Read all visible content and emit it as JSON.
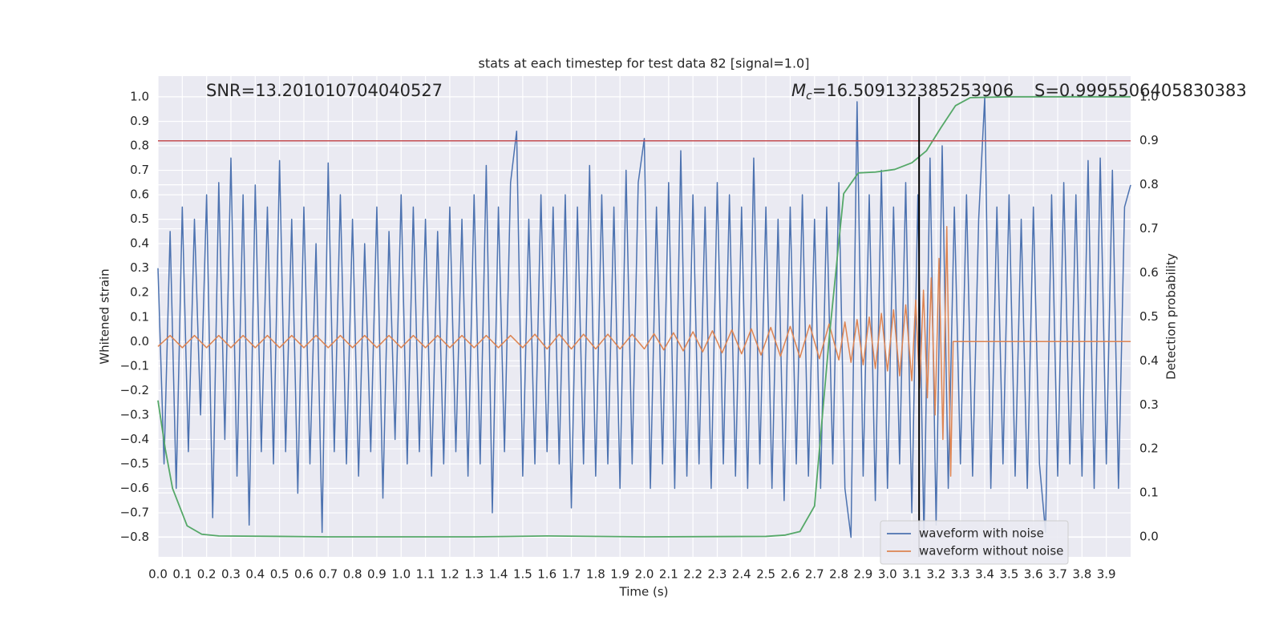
{
  "chart_data": {
    "type": "line",
    "title": "stats at each timestep for test data 82 [signal=1.0]",
    "xlabel": "Time (s)",
    "ylabel": "Whitened strain",
    "y2label": "Detection probability",
    "annotations": {
      "snr": "SNR=13.201010704040527",
      "mc_symbol": "M",
      "mc_subscript": "c",
      "mc_value": "=16.509132385253906",
      "s": "S=0.9995506405830383"
    },
    "xlim": [
      0,
      4
    ],
    "ylim": [
      -0.88,
      1.085
    ],
    "y2lim": [
      -0.0455,
      1.047
    ],
    "xticks": [
      {
        "value": 0.0,
        "label": "0.0"
      },
      0.1,
      0.2,
      0.3,
      0.4,
      0.5,
      0.6,
      0.7,
      0.8,
      0.9,
      {
        "value": 1.0,
        "label": "1.0"
      },
      1.1,
      1.2,
      1.3,
      1.4,
      1.5,
      1.6,
      1.7,
      1.8,
      1.9,
      {
        "value": 2.0,
        "label": "2.0"
      },
      2.1,
      2.2,
      2.3,
      2.4,
      2.5,
      2.6,
      2.7,
      2.8,
      2.9,
      {
        "value": 3.0,
        "label": "3.0"
      },
      3.1,
      3.2,
      3.3,
      3.4,
      3.5,
      3.6,
      3.7,
      3.8,
      3.9
    ],
    "yticks": [
      {
        "value": -0.8,
        "label": "−0.8"
      },
      {
        "value": -0.7,
        "label": "−0.7"
      },
      {
        "value": -0.6,
        "label": "−0.6"
      },
      {
        "value": -0.5,
        "label": "−0.5"
      },
      {
        "value": -0.4,
        "label": "−0.4"
      },
      {
        "value": -0.3,
        "label": "−0.3"
      },
      {
        "value": -0.2,
        "label": "−0.2"
      },
      {
        "value": -0.1,
        "label": "−0.1"
      },
      {
        "value": 0.0,
        "label": "0.0"
      },
      0.1,
      0.2,
      0.3,
      0.4,
      0.5,
      0.6,
      0.7,
      0.8,
      0.9,
      {
        "value": 1.0,
        "label": "1.0"
      }
    ],
    "y2ticks": [
      {
        "value": 0.0,
        "label": "0.0"
      },
      0.1,
      0.2,
      0.3,
      0.4,
      0.5,
      0.6,
      0.7,
      0.8,
      0.9,
      {
        "value": 1.0,
        "label": "1.0"
      }
    ],
    "grid": true,
    "legend": "lower right",
    "hline": {
      "value": 0.9,
      "axis": "y2",
      "color": "#c44e52"
    },
    "vline": {
      "value": 3.13,
      "color": "#000000"
    },
    "series": [
      {
        "name": "waveform with noise",
        "color": "#4c72b0",
        "x": [
          0,
          0.025,
          0.05,
          0.075,
          0.1,
          0.125,
          0.15,
          0.175,
          0.2,
          0.225,
          0.25,
          0.275,
          0.3,
          0.325,
          0.35,
          0.375,
          0.4,
          0.425,
          0.45,
          0.475,
          0.5,
          0.525,
          0.55,
          0.575,
          0.6,
          0.625,
          0.65,
          0.675,
          0.7,
          0.725,
          0.75,
          0.775,
          0.8,
          0.825,
          0.85,
          0.875,
          0.9,
          0.925,
          0.95,
          0.975,
          1,
          1.025,
          1.05,
          1.075,
          1.1,
          1.125,
          1.15,
          1.175,
          1.2,
          1.225,
          1.25,
          1.275,
          1.3,
          1.325,
          1.35,
          1.375,
          1.4,
          1.425,
          1.45,
          1.475,
          1.5,
          1.525,
          1.55,
          1.575,
          1.6,
          1.625,
          1.65,
          1.675,
          1.7,
          1.725,
          1.75,
          1.775,
          1.8,
          1.825,
          1.85,
          1.875,
          1.9,
          1.925,
          1.95,
          1.975,
          2,
          2.025,
          2.05,
          2.075,
          2.1,
          2.125,
          2.15,
          2.175,
          2.2,
          2.225,
          2.25,
          2.275,
          2.3,
          2.325,
          2.35,
          2.375,
          2.4,
          2.425,
          2.45,
          2.475,
          2.5,
          2.525,
          2.55,
          2.575,
          2.6,
          2.625,
          2.65,
          2.675,
          2.7,
          2.725,
          2.75,
          2.775,
          2.8,
          2.825,
          2.85,
          2.875,
          2.9,
          2.925,
          2.95,
          2.975,
          3,
          3.025,
          3.05,
          3.075,
          3.1,
          3.125,
          3.15,
          3.175,
          3.2,
          3.225,
          3.25,
          3.275,
          3.3,
          3.325,
          3.35,
          3.375,
          3.4,
          3.425,
          3.45,
          3.475,
          3.5,
          3.525,
          3.55,
          3.575,
          3.6,
          3.625,
          3.65,
          3.675,
          3.7,
          3.725,
          3.75,
          3.775,
          3.8,
          3.825,
          3.85,
          3.875,
          3.9,
          3.925,
          3.95,
          3.975,
          4
        ],
        "values": [
          0.3,
          -0.5,
          0.45,
          -0.6,
          0.55,
          -0.45,
          0.5,
          -0.3,
          0.6,
          -0.72,
          0.65,
          -0.4,
          0.75,
          -0.55,
          0.6,
          -0.75,
          0.64,
          -0.45,
          0.55,
          -0.5,
          0.74,
          -0.45,
          0.5,
          -0.62,
          0.55,
          -0.5,
          0.4,
          -0.78,
          0.73,
          -0.45,
          0.6,
          -0.5,
          0.5,
          -0.55,
          0.4,
          -0.45,
          0.55,
          -0.64,
          0.45,
          -0.4,
          0.6,
          -0.5,
          0.55,
          -0.45,
          0.5,
          -0.55,
          0.45,
          -0.5,
          0.55,
          -0.45,
          0.5,
          -0.55,
          0.6,
          -0.5,
          0.72,
          -0.7,
          0.55,
          -0.45,
          0.65,
          0.86,
          -0.55,
          0.5,
          -0.5,
          0.6,
          -0.45,
          0.55,
          -0.5,
          0.6,
          -0.68,
          0.55,
          -0.5,
          0.72,
          -0.55,
          0.6,
          -0.5,
          0.55,
          -0.6,
          0.7,
          -0.5,
          0.65,
          0.83,
          -0.6,
          0.55,
          -0.5,
          0.65,
          -0.6,
          0.78,
          -0.55,
          0.6,
          -0.5,
          0.55,
          -0.6,
          0.65,
          -0.5,
          0.6,
          -0.55,
          0.55,
          -0.6,
          0.75,
          -0.5,
          0.55,
          -0.6,
          0.5,
          -0.65,
          0.55,
          -0.5,
          0.6,
          -0.55,
          0.5,
          -0.6,
          0.55,
          -0.5,
          0.65,
          -0.6,
          -0.8,
          0.98,
          -0.55,
          0.6,
          -0.65,
          0.7,
          -0.6,
          0.55,
          -0.5,
          0.65,
          -0.7,
          0.6,
          -0.8,
          0.75,
          -0.75,
          0.8,
          -0.6,
          0.55,
          -0.5,
          0.6,
          -0.55,
          0.5,
          1.0,
          -0.6,
          0.55,
          -0.5,
          0.6,
          -0.55,
          0.5,
          -0.6,
          0.55,
          -0.5,
          -0.78,
          0.6,
          -0.55,
          0.65,
          -0.5,
          0.6,
          -0.55,
          0.74,
          -0.6,
          0.75,
          -0.5,
          0.7,
          -0.6,
          0.55,
          0.64
        ]
      },
      {
        "name": "waveform without noise",
        "color": "#dd8452",
        "x": [
          0,
          0.05,
          0.1,
          0.15,
          0.2,
          0.25,
          0.3,
          0.35,
          0.4,
          0.45,
          0.5,
          0.55,
          0.6,
          0.65,
          0.7,
          0.75,
          0.8,
          0.85,
          0.9,
          0.95,
          1,
          1.05,
          1.1,
          1.15,
          1.2,
          1.25,
          1.3,
          1.35,
          1.4,
          1.45,
          1.5,
          1.55,
          1.6,
          1.65,
          1.7,
          1.75,
          1.8,
          1.85,
          1.9,
          1.95,
          2,
          2.04,
          2.08,
          2.12,
          2.16,
          2.2,
          2.24,
          2.28,
          2.32,
          2.36,
          2.4,
          2.44,
          2.48,
          2.52,
          2.56,
          2.6,
          2.64,
          2.68,
          2.72,
          2.76,
          2.8,
          2.825,
          2.85,
          2.875,
          2.9,
          2.925,
          2.95,
          2.975,
          3,
          3.025,
          3.05,
          3.075,
          3.1,
          3.116,
          3.132,
          3.148,
          3.164,
          3.18,
          3.196,
          3.212,
          3.228,
          3.244,
          3.26,
          3.27,
          4
        ],
        "values": [
          -0.02,
          0.025,
          -0.025,
          0.025,
          -0.025,
          0.025,
          -0.025,
          0.025,
          -0.025,
          0.025,
          -0.025,
          0.025,
          -0.025,
          0.025,
          -0.025,
          0.025,
          -0.025,
          0.025,
          -0.025,
          0.025,
          -0.025,
          0.025,
          -0.025,
          0.025,
          -0.025,
          0.025,
          -0.025,
          0.025,
          -0.025,
          0.025,
          -0.025,
          0.03,
          -0.03,
          0.03,
          -0.03,
          0.03,
          -0.03,
          0.03,
          -0.03,
          0.03,
          -0.03,
          0.032,
          -0.034,
          0.036,
          -0.038,
          0.04,
          -0.042,
          0.044,
          -0.046,
          0.048,
          -0.05,
          0.052,
          -0.055,
          0.058,
          -0.06,
          0.062,
          -0.065,
          0.068,
          -0.07,
          0.072,
          -0.075,
          0.08,
          -0.085,
          0.09,
          -0.095,
          0.1,
          -0.11,
          0.115,
          -0.12,
          0.13,
          -0.14,
          0.15,
          -0.16,
          0.17,
          -0.19,
          0.21,
          -0.23,
          0.26,
          -0.3,
          0.34,
          -0.4,
          0.47,
          -0.55,
          0,
          0
        ]
      },
      {
        "color": "#55a868",
        "axis": "y2",
        "x": [
          0,
          0.03,
          0.06,
          0.12,
          0.18,
          0.25,
          0.5,
          0.7,
          1.0,
          1.3,
          1.6,
          2.0,
          2.5,
          2.58,
          2.64,
          2.7,
          2.76,
          2.82,
          2.88,
          2.95,
          3.03,
          3.1,
          3.16,
          3.22,
          3.28,
          3.34,
          3.5,
          3.9,
          4.0
        ],
        "values": [
          0.31,
          0.2,
          0.11,
          0.025,
          0.006,
          0.002,
          0.001,
          0,
          0,
          0,
          0.002,
          0,
          0.001,
          0.004,
          0.012,
          0.07,
          0.45,
          0.78,
          0.827,
          0.829,
          0.835,
          0.85,
          0.877,
          0.93,
          0.98,
          0.998,
          1.0,
          1.0,
          1.0
        ]
      }
    ]
  }
}
